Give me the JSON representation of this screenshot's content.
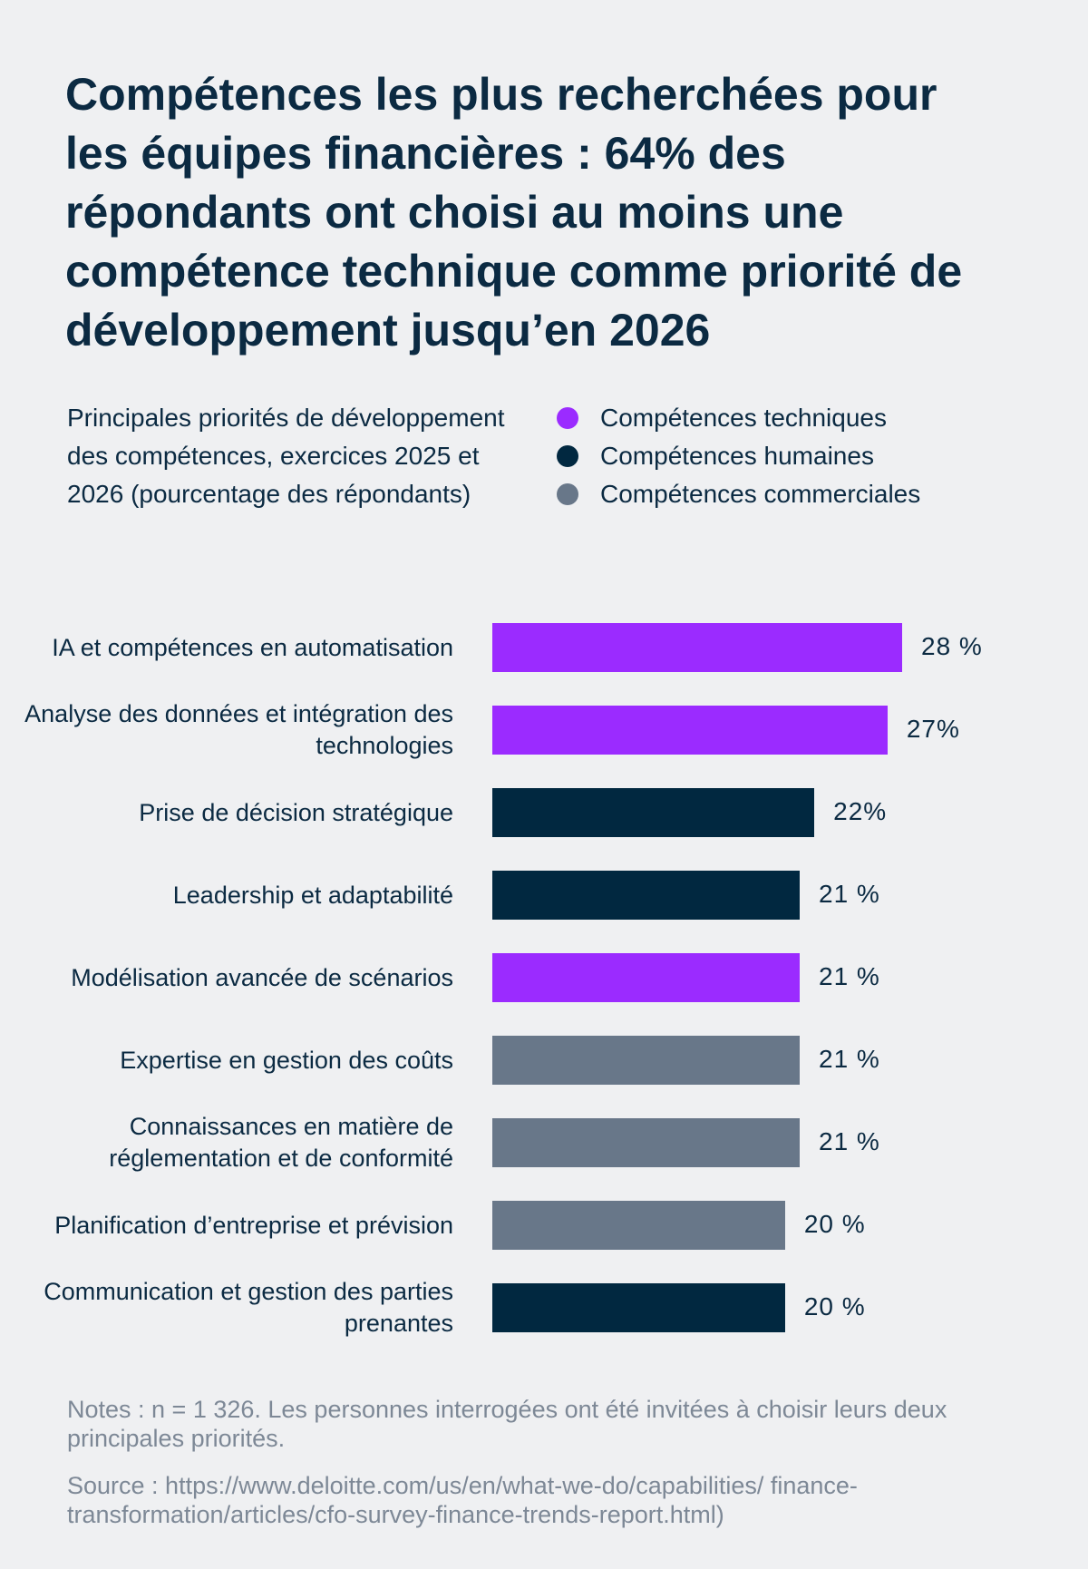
{
  "chart_data": {
    "type": "bar",
    "orientation": "horizontal",
    "title": "Compétences les plus recherchées pour les équipes financières : 64% des répondants ont choisi au moins une compétence technique comme priorité de développement jusqu’en 2026",
    "subtitle": "Principales priorités de développement des compétences, exercices 2025 et 2026 (pourcentage des répondants)",
    "legend": [
      {
        "name": "Compétences techniques",
        "color": "#9b2bff"
      },
      {
        "name": "Compétences humaines",
        "color": "#012840"
      },
      {
        "name": "Compétences commerciales",
        "color": "#687789"
      }
    ],
    "legend_position": "top-right",
    "grid": false,
    "xlim": [
      0,
      28
    ],
    "categories": [
      "IA et compétences en automatisation",
      "Analyse des données et intégration des technologies",
      "Prise de décision stratégique",
      "Leadership et adaptabilité",
      "Modélisation avancée de scénarios",
      "Expertise en gestion des coûts",
      "Connaissances en matière de réglementation et de conformité",
      "Planification d’entreprise et prévision",
      "Communication et gestion des parties prenantes"
    ],
    "values": [
      28,
      27,
      22,
      21,
      21,
      21,
      21,
      20,
      20
    ],
    "value_labels": [
      "28 %",
      "27%",
      "22%",
      "21 %",
      "21 %",
      "21 %",
      "21 %",
      "20 %",
      "20 %"
    ],
    "groups": [
      0,
      0,
      1,
      1,
      0,
      2,
      2,
      2,
      1
    ]
  },
  "notes": "Notes : n = 1 326. Les personnes interrogées ont été invitées à choisir leurs deux principales priorités.",
  "source": "Source : https://www.deloitte.com/us/en/what-we-do/capabilities/ finance-transformation/articles/cfo-survey-finance-trends-report.html)"
}
